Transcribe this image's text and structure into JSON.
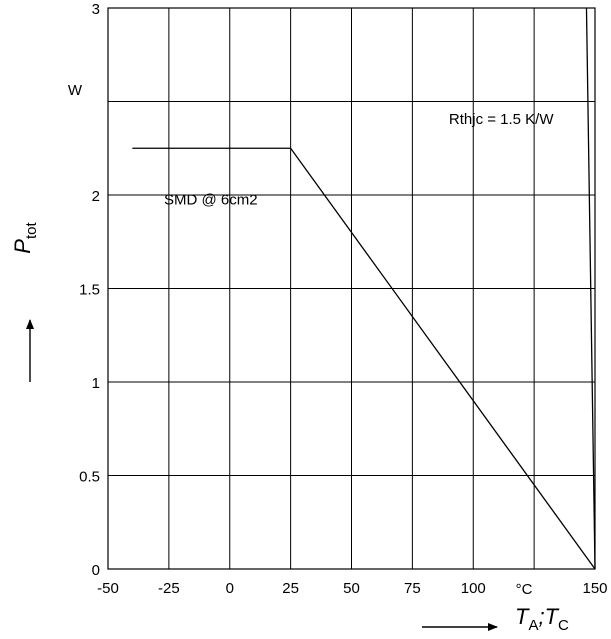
{
  "chart_data": {
    "type": "line",
    "xlabel": {
      "symbol_a": "T",
      "sub_a": "A",
      "sep": ";",
      "symbol_c": "T",
      "sub_c": "C"
    },
    "ylabel": {
      "symbol": "P",
      "sub": "tot"
    },
    "x_unit": "°C",
    "y_unit": "W",
    "xlim": [
      -50,
      150
    ],
    "ylim": [
      0,
      3
    ],
    "x_ticks": [
      {
        "value": -50,
        "label": "-50"
      },
      {
        "value": -25,
        "label": "-25"
      },
      {
        "value": 0,
        "label": "0"
      },
      {
        "value": 25,
        "label": "25"
      },
      {
        "value": 50,
        "label": "50"
      },
      {
        "value": 75,
        "label": "75"
      },
      {
        "value": 100,
        "label": "100"
      },
      {
        "value": 150,
        "label": "150"
      }
    ],
    "y_ticks": [
      {
        "value": 0,
        "label": "0"
      },
      {
        "value": 0.5,
        "label": "0.5"
      },
      {
        "value": 1,
        "label": "1"
      },
      {
        "value": 1.5,
        "label": "1.5"
      },
      {
        "value": 2,
        "label": "2"
      },
      {
        "value": 3,
        "label": "3"
      }
    ],
    "x_grid": [
      -50,
      -25,
      0,
      25,
      50,
      75,
      100,
      125,
      150
    ],
    "y_grid": [
      0,
      0.5,
      1,
      1.5,
      2,
      2.5,
      3
    ],
    "grid": true,
    "series": [
      {
        "name": "SMD @ 6cm2",
        "points": [
          [
            -40,
            2.25
          ],
          [
            25,
            2.25
          ],
          [
            150,
            0
          ]
        ]
      },
      {
        "name": "Rthjc = 1.5 K/W",
        "points": [
          [
            146.5,
            3.0
          ],
          [
            150,
            0
          ]
        ]
      }
    ],
    "annotations": [
      {
        "text": "SMD @ 6cm2",
        "x": -27,
        "y": 1.95
      },
      {
        "text": "Rthjc = 1.5 K/W",
        "x": 90,
        "y": 2.38
      }
    ]
  }
}
